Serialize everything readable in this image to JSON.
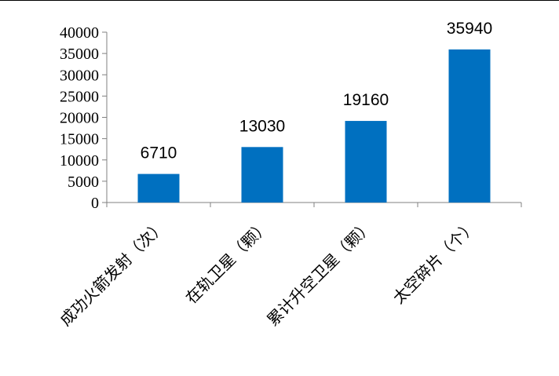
{
  "chart_data": {
    "type": "bar",
    "title": "",
    "xlabel": "",
    "ylabel": "",
    "categories": [
      "成功火箭发射（次）",
      "在轨卫星（颗）",
      "累计升空卫星（颗）",
      "太空碎片（个）"
    ],
    "values": [
      6710,
      13030,
      19160,
      35940
    ],
    "data_labels": [
      "6710",
      "13030",
      "19160",
      "35940"
    ],
    "ylim": [
      0,
      40000
    ],
    "yticks": [
      0,
      5000,
      10000,
      15000,
      20000,
      25000,
      30000,
      35000,
      40000
    ],
    "ytick_labels": [
      "0",
      "5000",
      "10000",
      "15000",
      "20000",
      "25000",
      "30000",
      "35000",
      "40000"
    ],
    "bar_color": "#0070C0",
    "grid": false,
    "legend": "none"
  }
}
